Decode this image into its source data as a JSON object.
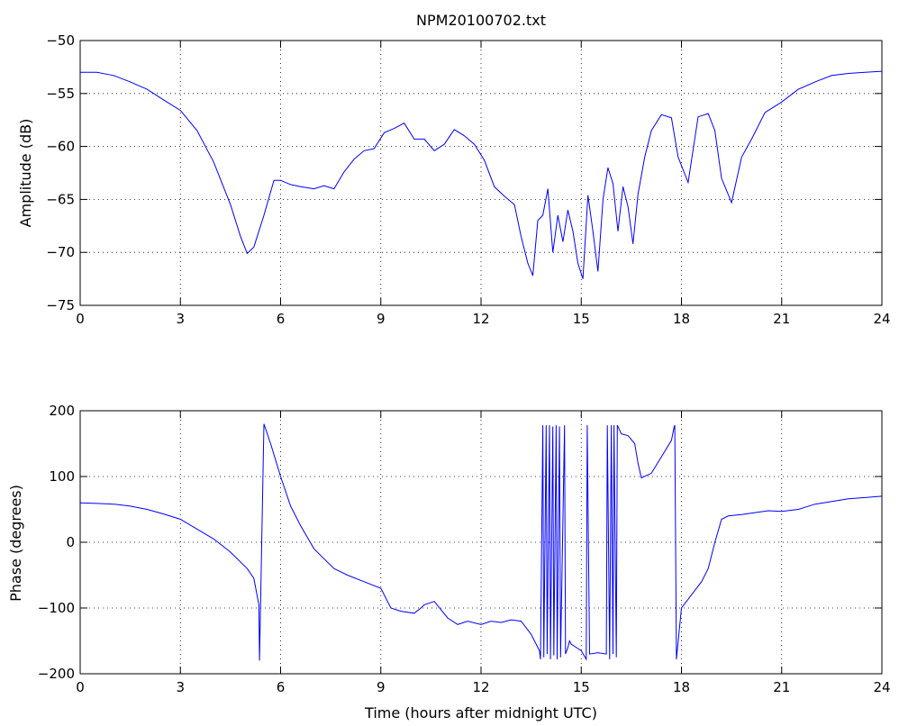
{
  "colors": {
    "line": "#0000ff",
    "axes": "#000000",
    "background": "#ffffff"
  },
  "chart_data": [
    {
      "id": "amplitude",
      "type": "line",
      "title": "NPM20100702.txt",
      "xlabel": "",
      "ylabel": "Amplitude (dB)",
      "xlim": [
        0,
        24
      ],
      "ylim": [
        -75,
        -50
      ],
      "xticks": [
        0,
        3,
        6,
        9,
        12,
        15,
        18,
        21,
        24
      ],
      "yticks": [
        -75,
        -70,
        -65,
        -60,
        -55,
        -50
      ],
      "grid": true,
      "series": [
        {
          "x": [
            0,
            0.5,
            1,
            1.5,
            2,
            2.5,
            3,
            3.5,
            4,
            4.5,
            4.8,
            5,
            5.2,
            5.5,
            5.8,
            6,
            6.3,
            6.6,
            7,
            7.3,
            7.6,
            7.9,
            8.2,
            8.5,
            8.8,
            9.1,
            9.4,
            9.7,
            10,
            10.3,
            10.6,
            10.9,
            11.2,
            11.5,
            11.8,
            12.1,
            12.4,
            12.7,
            13,
            13.2,
            13.4,
            13.55,
            13.7,
            13.85,
            14,
            14.15,
            14.3,
            14.45,
            14.6,
            14.75,
            14.9,
            15.05,
            15.2,
            15.35,
            15.5,
            15.65,
            15.8,
            15.95,
            16.1,
            16.25,
            16.4,
            16.55,
            16.7,
            16.9,
            17.1,
            17.4,
            17.7,
            17.9,
            18.2,
            18.5,
            18.8,
            19,
            19.2,
            19.5,
            19.8,
            20.1,
            20.5,
            21,
            21.5,
            22,
            22.5,
            23,
            23.5,
            24
          ],
          "y": [
            -53,
            -53,
            -53.3,
            -53.9,
            -54.6,
            -55.6,
            -56.6,
            -58.5,
            -61.5,
            -65.5,
            -68.5,
            -70.1,
            -69.5,
            -66.5,
            -63.2,
            -63.2,
            -63.6,
            -63.8,
            -64,
            -63.7,
            -64,
            -62.4,
            -61.2,
            -60.4,
            -60.2,
            -58.7,
            -58.3,
            -57.8,
            -59.3,
            -59.3,
            -60.4,
            -59.8,
            -58.4,
            -59,
            -59.8,
            -61.3,
            -63.8,
            -64.7,
            -65.5,
            -68.5,
            -71,
            -72.2,
            -67,
            -66.5,
            -64,
            -70,
            -66.5,
            -69,
            -66,
            -68,
            -71,
            -72.5,
            -64.6,
            -68,
            -71.8,
            -65,
            -62,
            -63.5,
            -68,
            -63.8,
            -65.7,
            -69.2,
            -64.5,
            -61,
            -58.5,
            -57,
            -57.3,
            -61,
            -63.4,
            -57.2,
            -56.9,
            -58.5,
            -63,
            -65.3,
            -61,
            -59.3,
            -56.8,
            -55.8,
            -54.6,
            -53.9,
            -53.3,
            -53.1,
            -53,
            -52.9
          ]
        }
      ]
    },
    {
      "id": "phase",
      "type": "line",
      "title": "",
      "xlabel": "Time (hours after midnight UTC)",
      "ylabel": "Phase (degrees)",
      "xlim": [
        0,
        24
      ],
      "ylim": [
        -200,
        200
      ],
      "xticks": [
        0,
        3,
        6,
        9,
        12,
        15,
        18,
        21,
        24
      ],
      "yticks": [
        -200,
        -100,
        0,
        100,
        200
      ],
      "grid": true,
      "series": [
        {
          "x": [
            0,
            0.5,
            1,
            1.5,
            2,
            2.5,
            3,
            3.5,
            4,
            4.5,
            5,
            5.2,
            5.35,
            5.37,
            5.5,
            5.7,
            6,
            6.3,
            6.6,
            7,
            7.3,
            7.6,
            8,
            8.5,
            9,
            9.3,
            9.6,
            10,
            10.2,
            10.3,
            10.6,
            11,
            11.3,
            11.6,
            12,
            12.3,
            12.6,
            12.9,
            13.2,
            13.5,
            13.75,
            13.78,
            13.85,
            13.88,
            13.95,
            13.98,
            14.05,
            14.08,
            14.15,
            14.18,
            14.25,
            14.28,
            14.35,
            14.38,
            14.5,
            14.53,
            14.6,
            14.65,
            14.7,
            15,
            15.15,
            15.18,
            15.25,
            15.5,
            15.75,
            15.78,
            15.85,
            15.9,
            15.95,
            15.98,
            16.05,
            16.08,
            16.2,
            16.4,
            16.6,
            16.7,
            16.8,
            17.1,
            17.4,
            17.7,
            17.78,
            17.8,
            17.85,
            18,
            18.3,
            18.6,
            18.8,
            19,
            19.2,
            19.4,
            19.8,
            20.2,
            20.6,
            21,
            21.5,
            22,
            22.5,
            23,
            23.5,
            24
          ],
          "y": [
            60,
            59,
            58,
            55,
            50,
            43,
            35,
            20,
            5,
            -15,
            -40,
            -55,
            -95,
            -180,
            180,
            150,
            100,
            55,
            25,
            -10,
            -25,
            -40,
            -50,
            -60,
            -70,
            -100,
            -105,
            -108,
            -100,
            -95,
            -90,
            -115,
            -125,
            -120,
            -125,
            -120,
            -122,
            -118,
            -120,
            -140,
            -165,
            -178,
            178,
            -175,
            178,
            -170,
            178,
            -178,
            176,
            -172,
            178,
            -178,
            176,
            -175,
            178,
            -170,
            -160,
            -150,
            -155,
            -165,
            -178,
            178,
            -170,
            -168,
            -170,
            178,
            -178,
            178,
            -170,
            178,
            -175,
            178,
            165,
            162,
            150,
            120,
            98,
            105,
            130,
            155,
            175,
            178,
            -178,
            -100,
            -80,
            -60,
            -40,
            0,
            35,
            40,
            42,
            45,
            48,
            47,
            50,
            58,
            62,
            66,
            68,
            70
          ]
        }
      ]
    }
  ]
}
